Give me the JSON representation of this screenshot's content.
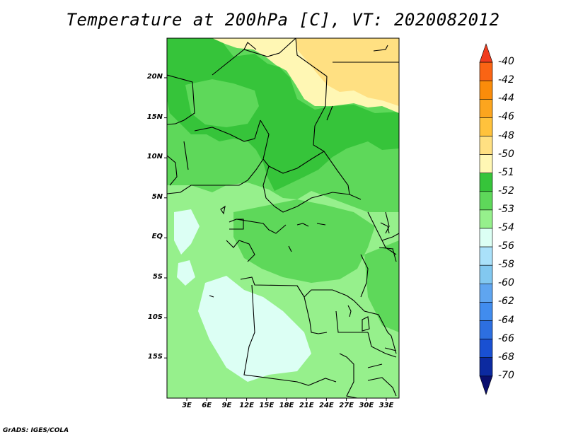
{
  "title": "Temperature at 200hPa [C], VT: 2020082012",
  "credit": "GrADS: IGES/COLA",
  "map": {
    "lat_labels": [
      "20N",
      "15N",
      "10N",
      "5N",
      "EQ",
      "5S",
      "10S",
      "15S"
    ],
    "lon_labels": [
      "3E",
      "6E",
      "9E",
      "12E",
      "15E",
      "18E",
      "21E",
      "24E",
      "27E",
      "30E",
      "33E"
    ]
  },
  "legend": {
    "labels": [
      "-40",
      "-42",
      "-44",
      "-46",
      "-48",
      "-50",
      "-51",
      "-52",
      "-53",
      "-54",
      "-56",
      "-58",
      "-60",
      "-62",
      "-64",
      "-66",
      "-68",
      "-70"
    ],
    "colors": [
      "#f03c1e",
      "#fa6414",
      "#fa8c0a",
      "#fca51e",
      "#ffc23c",
      "#ffe082",
      "#fff7b4",
      "#36c43a",
      "#5ed85a",
      "#96f08c",
      "#dcfff4",
      "#aae1fa",
      "#82c8f0",
      "#5fa5f0",
      "#418cee",
      "#2d6fe0",
      "#1950d2",
      "#0c2aa0",
      "#0a0f6e"
    ]
  },
  "colors": {
    "weak_green": "#5ed85a",
    "light_green": "#96f08c",
    "pale_cyan": "#dcfff4",
    "strong_green": "#36c43a",
    "pale_yellow": "#fff7b4",
    "yellow": "#ffe082"
  }
}
